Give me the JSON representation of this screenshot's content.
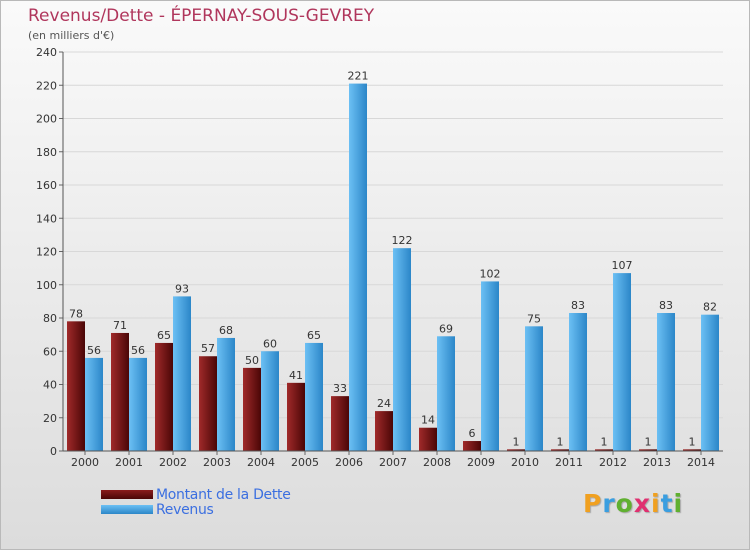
{
  "chart_data": {
    "type": "bar",
    "title": "Revenus/Dette - ÉPERNAY-SOUS-GEVREY",
    "subtitle": "(en milliers d'€)",
    "categories": [
      "2000",
      "2001",
      "2002",
      "2003",
      "2004",
      "2005",
      "2006",
      "2007",
      "2008",
      "2009",
      "2010",
      "2011",
      "2012",
      "2013",
      "2014"
    ],
    "series": [
      {
        "name": "Montant de la Dette",
        "color": "#7a1414",
        "values": [
          78,
          71,
          65,
          57,
          50,
          41,
          33,
          24,
          14,
          6,
          1,
          1,
          1,
          1,
          1
        ]
      },
      {
        "name": "Revenus",
        "color": "#3a9ee0",
        "values": [
          56,
          56,
          93,
          68,
          60,
          65,
          221,
          122,
          69,
          102,
          75,
          83,
          107,
          83,
          82
        ]
      }
    ],
    "ylim": [
      0,
      240
    ],
    "yticks": [
      0,
      20,
      40,
      60,
      80,
      100,
      120,
      140,
      160,
      180,
      200,
      220,
      240
    ],
    "grid": true,
    "legend_position": "bottom-left",
    "colors": {
      "title": "#b0365c",
      "legend_text": "#3b6fe0"
    }
  },
  "logo": {
    "letters": [
      "P",
      "r",
      "o",
      "x",
      "i",
      "t",
      "i"
    ],
    "colors": [
      "#f0a020",
      "#3a9ee0",
      "#60b030",
      "#e03070",
      "#f0a020",
      "#3a9ee0",
      "#60b030"
    ]
  }
}
